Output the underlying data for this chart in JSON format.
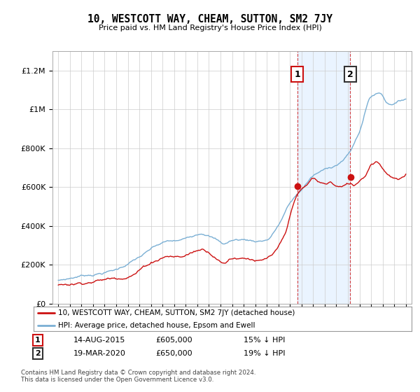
{
  "title": "10, WESTCOTT WAY, CHEAM, SUTTON, SM2 7JY",
  "subtitle": "Price paid vs. HM Land Registry's House Price Index (HPI)",
  "ylabel_ticks": [
    "£0",
    "£200K",
    "£400K",
    "£600K",
    "£800K",
    "£1M",
    "£1.2M"
  ],
  "ytick_values": [
    0,
    200000,
    400000,
    600000,
    800000,
    1000000,
    1200000
  ],
  "ylim": [
    0,
    1300000
  ],
  "xlim_start": 1994.5,
  "xlim_end": 2025.5,
  "hpi_color": "#7aafd4",
  "price_color": "#cc1111",
  "transaction1_date": 2015.62,
  "transaction1_price": 605000,
  "transaction1_label": "1",
  "transaction2_date": 2020.21,
  "transaction2_price": 650000,
  "transaction2_label": "2",
  "legend_line1": "10, WESTCOTT WAY, CHEAM, SUTTON, SM2 7JY (detached house)",
  "legend_line2": "HPI: Average price, detached house, Epsom and Ewell",
  "table_row1": [
    "1",
    "14-AUG-2015",
    "£605,000",
    "15% ↓ HPI"
  ],
  "table_row2": [
    "2",
    "19-MAR-2020",
    "£650,000",
    "19% ↓ HPI"
  ],
  "footer": "Contains HM Land Registry data © Crown copyright and database right 2024.\nThis data is licensed under the Open Government Licence v3.0.",
  "background_color": "#ffffff",
  "grid_color": "#cccccc",
  "shade_color": "#ddeeff"
}
